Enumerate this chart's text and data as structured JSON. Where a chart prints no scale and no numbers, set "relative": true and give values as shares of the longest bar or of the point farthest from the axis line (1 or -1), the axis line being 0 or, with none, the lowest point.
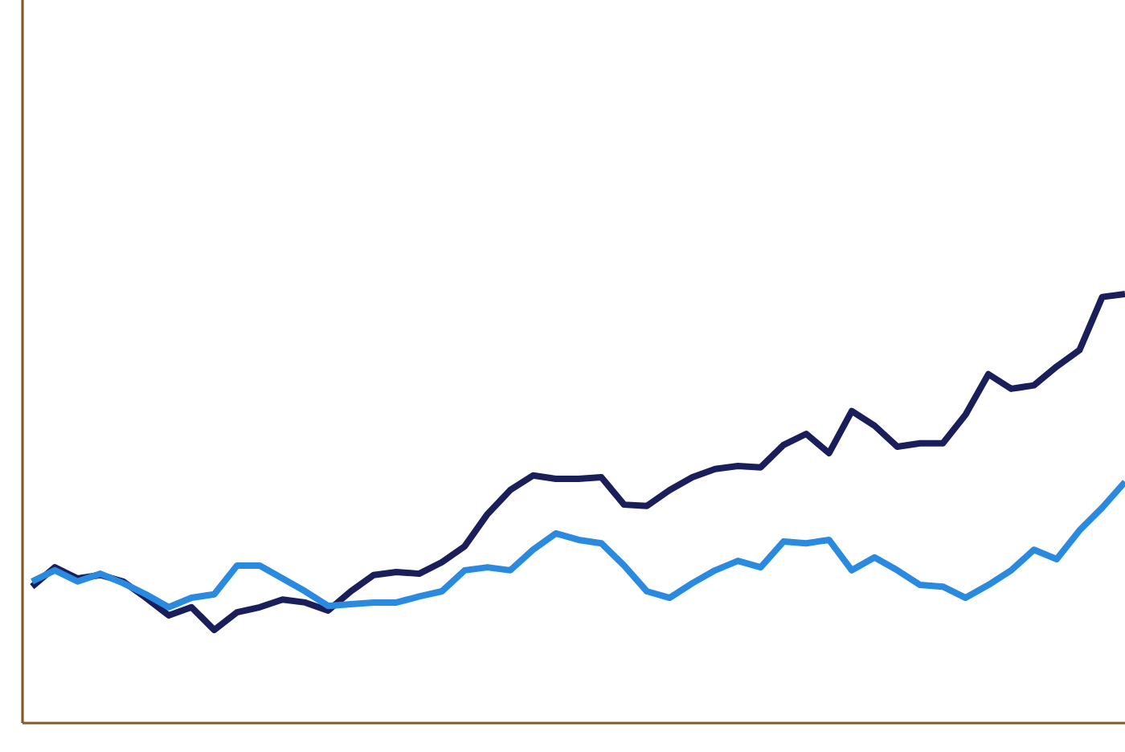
{
  "chart_data": {
    "type": "line",
    "relative": true,
    "marker": "none",
    "line_style": "solid",
    "categories": [
      null,
      null,
      null,
      null,
      null,
      null,
      null,
      null,
      null,
      null,
      null,
      null,
      null,
      null,
      null,
      null,
      null,
      null,
      null,
      null,
      null,
      null,
      null,
      null,
      null,
      null,
      null,
      null,
      null,
      null,
      null,
      null,
      null,
      null,
      null,
      null,
      null,
      null,
      null,
      null,
      null,
      null,
      null,
      null,
      null,
      null,
      null,
      null,
      null
    ],
    "series": [
      {
        "color": "#1a1f5c",
        "values": [
          0.318,
          0.363,
          0.337,
          0.345,
          0.33,
          0.292,
          0.251,
          0.27,
          0.217,
          0.258,
          0.27,
          0.288,
          0.281,
          0.262,
          0.307,
          0.345,
          0.352,
          0.348,
          0.375,
          0.412,
          0.487,
          0.543,
          0.577,
          0.569,
          0.569,
          0.573,
          0.509,
          0.506,
          0.543,
          0.573,
          0.592,
          0.599,
          0.596,
          0.648,
          0.674,
          0.629,
          0.727,
          0.693,
          0.644,
          0.652,
          0.652,
          0.719,
          0.813,
          0.779,
          0.787,
          0.831,
          0.869,
          0.993,
          1
        ]
      },
      {
        "color": "#2a8ae0",
        "values": [
          0.33,
          0.356,
          0.33,
          0.348,
          0.326,
          0.3,
          0.27,
          0.292,
          0.3,
          0.367,
          0.367,
          0.337,
          0.307,
          0.273,
          0.277,
          0.281,
          0.281,
          0.295,
          0.307,
          0.356,
          0.363,
          0.356,
          0.404,
          0.442,
          0.427,
          0.419,
          0.367,
          0.307,
          0.292,
          0.326,
          0.356,
          0.378,
          0.363,
          0.423,
          0.419,
          0.427,
          0.356,
          0.386,
          0.356,
          0.322,
          0.318,
          0.292,
          0.322,
          0.356,
          0.404,
          0.382,
          0.449,
          0.502,
          0.562
        ]
      }
    ]
  }
}
